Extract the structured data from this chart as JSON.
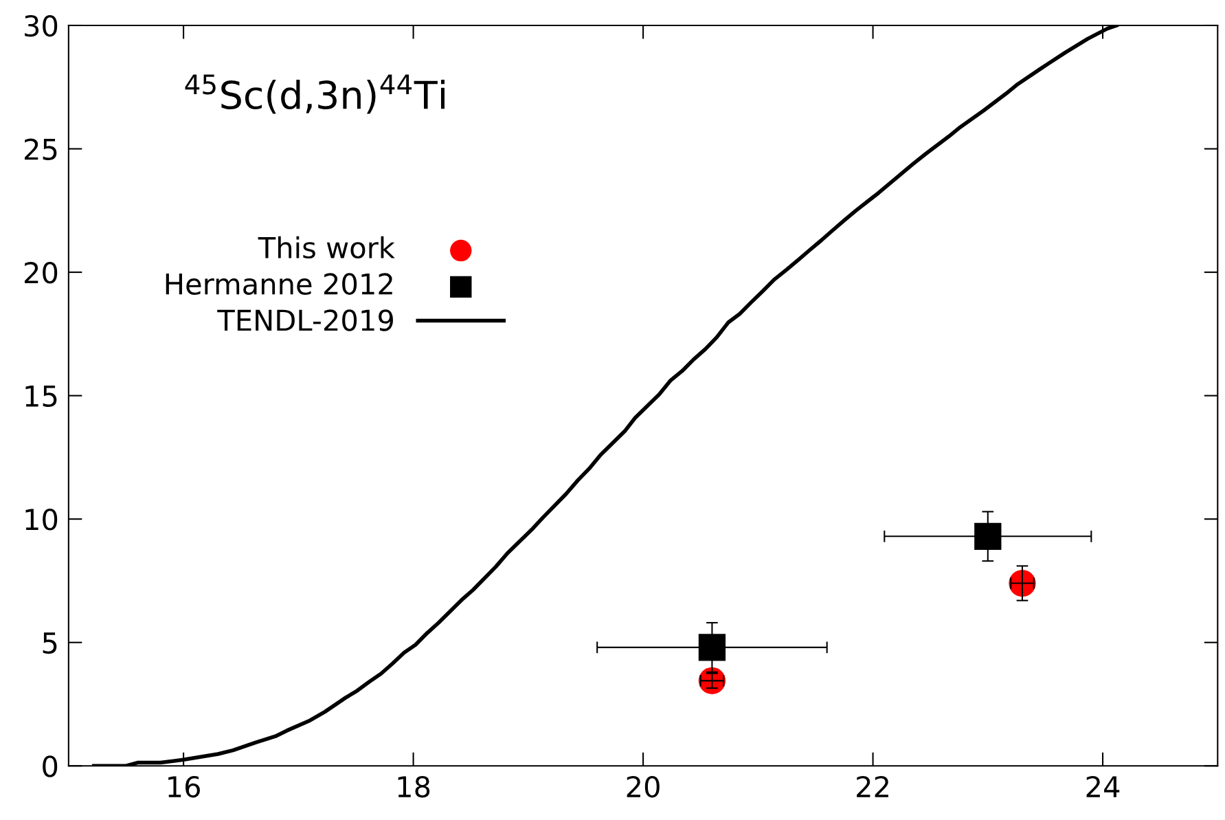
{
  "chart_data": {
    "type": "scatter",
    "annotations": [
      "$^{45}$Sc(d,3n)$^{44}$Ti"
    ],
    "xlim": [
      15,
      25
    ],
    "xticks": [
      16,
      18,
      20,
      22,
      24
    ],
    "ylim": [
      0,
      30
    ],
    "yticks": [
      0,
      5,
      10,
      15,
      20,
      25,
      30
    ],
    "grid": false,
    "legend": "top left",
    "series": [
      {
        "name": "This work",
        "marker": "circle",
        "color": "#ff0000",
        "x": [
          20.6,
          23.3
        ],
        "values": [
          3.45,
          7.4
        ],
        "errors": [
          0.3,
          0.7
        ],
        "xerrors": [
          0.1,
          0.1
        ]
      },
      {
        "name": "Hermanne 2012",
        "marker": "square",
        "color": "#000000",
        "x": [
          20.6,
          23.0
        ],
        "values": [
          4.8,
          9.3
        ],
        "errors": [
          1.0,
          1.0
        ],
        "xerrors": [
          1.0,
          0.9
        ]
      },
      {
        "name": "TENDL-2019",
        "type": "line",
        "marker": "none",
        "line_style": "solid",
        "color": "#000000",
        "x": [
          15.22,
          15.5,
          15.6,
          15.8,
          16.0,
          16.3,
          16.43,
          16.63,
          16.8,
          16.9,
          17.1,
          17.23,
          17.41,
          17.51,
          17.62,
          17.72,
          17.82,
          17.92,
          18.02,
          18.12,
          18.22,
          18.42,
          18.52,
          18.72,
          18.82,
          19.03,
          19.13,
          19.33,
          19.43,
          19.53,
          19.63,
          19.84,
          19.93,
          20.14,
          20.24,
          20.34,
          20.44,
          20.54,
          20.64,
          20.74,
          20.84,
          20.94,
          21.04,
          21.14,
          21.25,
          21.35,
          21.45,
          21.55,
          21.65,
          21.75,
          21.85,
          22.05,
          22.25,
          22.35,
          22.46,
          22.66,
          22.76,
          22.96,
          23.16,
          23.26,
          23.46,
          23.67,
          23.87,
          24.04,
          24.12
        ],
        "values": [
          0,
          0,
          0.13,
          0.13,
          0.25,
          0.48,
          0.63,
          0.95,
          1.2,
          1.43,
          1.84,
          2.19,
          2.76,
          3.04,
          3.42,
          3.74,
          4.15,
          4.59,
          4.91,
          5.38,
          5.8,
          6.72,
          7.13,
          8.08,
          8.62,
          9.57,
          10.07,
          11.02,
          11.56,
          12.04,
          12.6,
          13.56,
          14.1,
          15.05,
          15.62,
          16.0,
          16.47,
          16.88,
          17.36,
          17.96,
          18.31,
          18.78,
          19.23,
          19.7,
          20.11,
          20.5,
          20.9,
          21.29,
          21.7,
          22.1,
          22.49,
          23.22,
          24.0,
          24.39,
          24.8,
          25.5,
          25.88,
          26.54,
          27.24,
          27.62,
          28.25,
          28.89,
          29.46,
          29.87,
          30.0
        ]
      }
    ]
  }
}
